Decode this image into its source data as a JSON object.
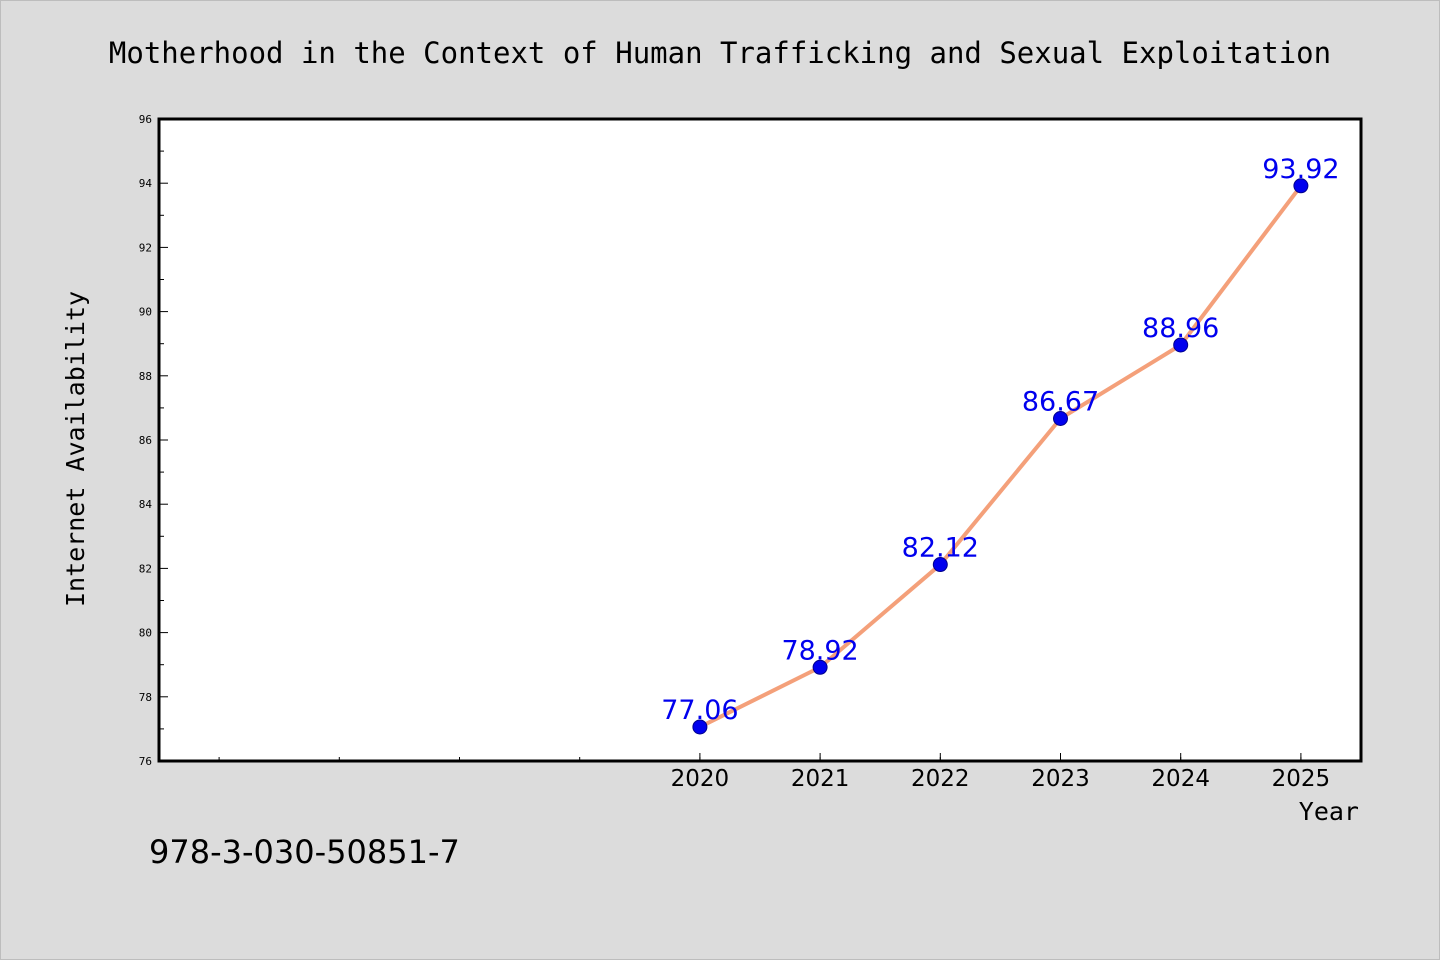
{
  "chart_data": {
    "type": "line",
    "title": "Motherhood in the Context of Human Trafficking and Sexual Exploitation",
    "xlabel": "Year",
    "ylabel": "Internet Availability",
    "x": [
      2020,
      2021,
      2022,
      2023,
      2024,
      2025
    ],
    "series": [
      {
        "values": [
          77.06,
          78.92,
          82.12,
          86.67,
          88.96,
          93.92
        ],
        "color": "#f4a07a",
        "marker_color": "#0000ee"
      }
    ],
    "data_labels": [
      "77.06",
      "78.92",
      "82.12",
      "86.67",
      "88.96",
      "93.92"
    ],
    "ylim": [
      76,
      96
    ],
    "y_ticks": [
      76,
      78,
      80,
      82,
      84,
      86,
      88,
      90,
      92,
      94,
      96
    ],
    "xlim": [
      2015.5,
      2025.5
    ],
    "x_tick_labels": [
      "2020",
      "2021",
      "2022",
      "2023",
      "2024",
      "2025"
    ],
    "grid": false,
    "label_color": "#0000ee"
  },
  "footnote": "978-3-030-50851-7",
  "colors": {
    "background": "#dcdcdc",
    "plot_area": "#ffffff",
    "axis": "#000000"
  }
}
